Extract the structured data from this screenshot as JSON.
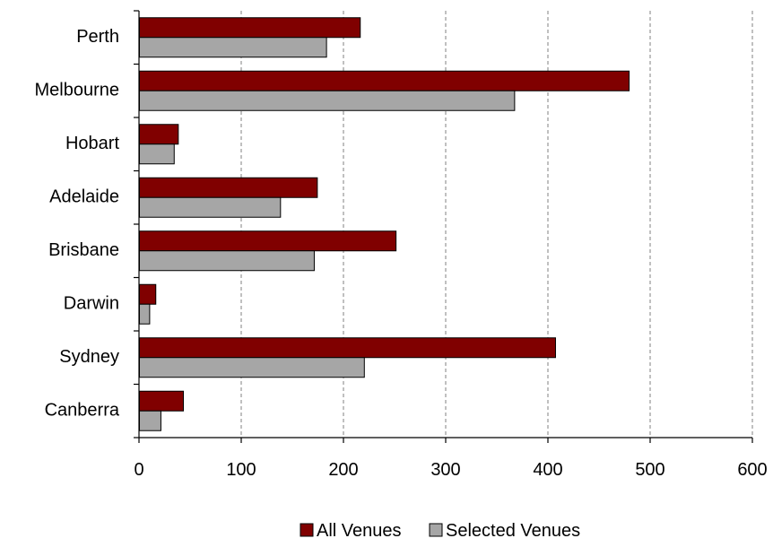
{
  "chart_data": {
    "type": "bar",
    "orientation": "horizontal",
    "title": "",
    "xlabel": "",
    "ylabel": "",
    "categories": [
      "Perth",
      "Melbourne",
      "Hobart",
      "Adelaide",
      "Brisbane",
      "Darwin",
      "Sydney",
      "Canberra"
    ],
    "series": [
      {
        "name": "All Venues",
        "color": "#800000",
        "values": [
          216,
          479,
          38,
          174,
          251,
          16,
          407,
          43
        ]
      },
      {
        "name": "Selected Venues",
        "color": "#a6a6a6",
        "values": [
          183,
          367,
          34,
          138,
          171,
          10,
          220,
          21
        ]
      }
    ],
    "xlim": [
      0,
      600
    ],
    "xticks": [
      0,
      100,
      200,
      300,
      400,
      500,
      600
    ],
    "grid": "vertical-dashed",
    "legend": "bottom"
  }
}
